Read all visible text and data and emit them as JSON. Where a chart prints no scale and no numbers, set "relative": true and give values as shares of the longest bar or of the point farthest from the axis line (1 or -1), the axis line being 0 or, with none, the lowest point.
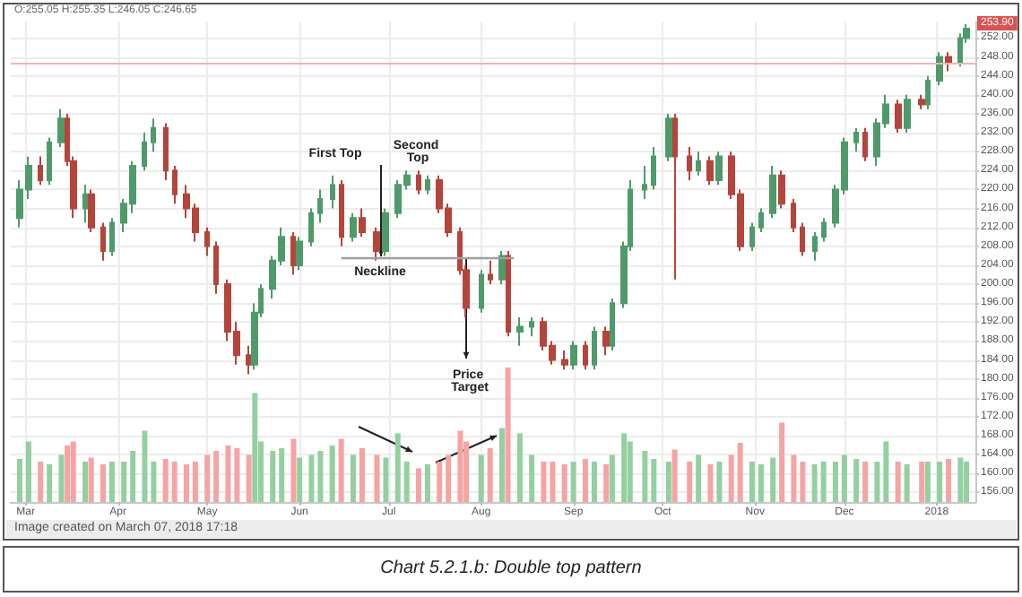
{
  "chart_data": [
    {
      "type": "candlestick",
      "tick_labels": "y",
      "grid": true,
      "xlim": [
        "2017-02-24",
        "2018-01-14"
      ],
      "xticks": [
        {
          "value": "2017-03-01",
          "label": "Mar"
        },
        {
          "value": "2017-04-01",
          "label": "Apr"
        },
        {
          "value": "2017-05-01",
          "label": "May"
        },
        {
          "value": "2017-06-01",
          "label": "Jun"
        },
        {
          "value": "2017-07-01",
          "label": "Jul"
        },
        {
          "value": "2017-08-01",
          "label": "Aug"
        },
        {
          "value": "2017-09-01",
          "label": "Sep"
        },
        {
          "value": "2017-10-01",
          "label": "Oct"
        },
        {
          "value": "2017-11-01",
          "label": "Nov"
        },
        {
          "value": "2017-12-01",
          "label": "Dec"
        },
        {
          "value": "2018-01-01",
          "label": "2018"
        }
      ],
      "ylim": [
        154,
        255.5
      ],
      "yticks": [
        {
          "value": 156,
          "label": "156.00"
        },
        {
          "value": 160,
          "label": "160.00"
        },
        {
          "value": 164,
          "label": "164.00"
        },
        {
          "value": 168,
          "label": "168.00"
        },
        {
          "value": 172,
          "label": "172.00"
        },
        {
          "value": 176,
          "label": "176.00"
        },
        {
          "value": 180,
          "label": "180.00"
        },
        {
          "value": 184,
          "label": "184.00"
        },
        {
          "value": 188,
          "label": "188.00"
        },
        {
          "value": 192,
          "label": "192.00"
        },
        {
          "value": 196,
          "label": "196.00"
        },
        {
          "value": 200,
          "label": "200.00"
        },
        {
          "value": 204,
          "label": "204.00"
        },
        {
          "value": 208,
          "label": "208.00"
        },
        {
          "value": 212,
          "label": "212.00"
        },
        {
          "value": 216,
          "label": "216.00"
        },
        {
          "value": 220,
          "label": "220.00"
        },
        {
          "value": 224,
          "label": "224.00"
        },
        {
          "value": 228,
          "label": "228.00"
        },
        {
          "value": 232,
          "label": "232.00"
        },
        {
          "value": 236,
          "label": "236.00"
        },
        {
          "value": 240,
          "label": "240.00"
        },
        {
          "value": 244,
          "label": "244.00"
        },
        {
          "value": 248,
          "label": "248.00"
        },
        {
          "value": 252,
          "label": "252.00"
        }
      ],
      "ref_lines": [
        {
          "axis": "y",
          "value": 246.65,
          "color": "#f4b4b4"
        }
      ],
      "annotations": [
        "O:255.05 H:255.35 L:246.05 C:246.65",
        "253.90",
        "First Top",
        "Second Top",
        "Neckline",
        "Price Target"
      ],
      "series": [
        {
          "x": [
            "2017-02-27",
            "2017-03-02",
            "2017-03-06",
            "2017-03-09",
            "2017-03-13",
            "2017-03-15",
            "2017-03-17",
            "2017-03-21",
            "2017-03-23",
            "2017-03-27",
            "2017-03-30",
            "2017-04-03",
            "2017-04-06",
            "2017-04-10",
            "2017-04-13",
            "2017-04-17",
            "2017-04-20",
            "2017-04-24",
            "2017-04-27",
            "2017-05-01",
            "2017-05-04",
            "2017-05-08",
            "2017-05-11",
            "2017-05-15",
            "2017-05-17",
            "2017-05-19",
            "2017-05-23",
            "2017-05-26",
            "2017-05-30",
            "2017-06-01",
            "2017-06-05",
            "2017-06-08",
            "2017-06-12",
            "2017-06-15",
            "2017-06-19",
            "2017-06-22",
            "2017-06-27",
            "2017-06-30",
            "2017-07-04",
            "2017-07-07",
            "2017-07-11",
            "2017-07-14",
            "2017-07-18",
            "2017-07-21",
            "2017-07-25",
            "2017-07-27",
            "2017-08-01",
            "2017-08-04",
            "2017-08-08",
            "2017-08-10",
            "2017-08-14",
            "2017-08-18",
            "2017-08-22",
            "2017-08-25",
            "2017-08-29",
            "2017-09-01",
            "2017-09-05",
            "2017-09-08",
            "2017-09-12",
            "2017-09-14",
            "2017-09-18",
            "2017-09-20",
            "2017-09-25",
            "2017-09-28",
            "2017-10-03",
            "2017-10-05",
            "2017-10-10",
            "2017-10-13",
            "2017-10-17",
            "2017-10-20",
            "2017-10-24",
            "2017-10-27",
            "2017-10-31",
            "2017-11-03",
            "2017-11-07",
            "2017-11-10",
            "2017-11-14",
            "2017-11-17",
            "2017-11-21",
            "2017-11-24",
            "2017-11-28",
            "2017-12-01",
            "2017-12-05",
            "2017-12-08",
            "2017-12-12",
            "2017-12-15",
            "2017-12-19",
            "2017-12-22",
            "2017-12-27",
            "2017-12-29",
            "2018-01-02",
            "2018-01-05",
            "2018-01-09",
            "2018-01-11"
          ],
          "ohlc": [
            [
              214,
              222,
              212,
              220
            ],
            [
              220,
              227,
              218,
              225
            ],
            [
              225,
              227,
              221,
              222
            ],
            [
              222,
              231,
              221,
              230
            ],
            [
              230,
              237,
              229,
              235
            ],
            [
              235,
              236,
              225,
              226
            ],
            [
              226,
              227,
              214,
              216
            ],
            [
              216,
              221,
              213,
              219
            ],
            [
              219,
              220,
              211,
              212
            ],
            [
              212,
              213,
              205,
              207
            ],
            [
              207,
              214,
              206,
              213
            ],
            [
              213,
              218,
              211,
              217
            ],
            [
              217,
              226,
              215,
              225
            ],
            [
              225,
              232,
              224,
              230
            ],
            [
              230,
              235,
              228,
              233
            ],
            [
              233,
              234,
              222,
              224
            ],
            [
              224,
              225,
              217,
              219
            ],
            [
              219,
              221,
              214,
              216
            ],
            [
              216,
              217,
              209,
              211
            ],
            [
              211,
              212,
              206,
              208
            ],
            [
              208,
              209,
              198,
              200
            ],
            [
              200,
              201,
              188,
              190
            ],
            [
              190,
              192,
              183,
              185
            ],
            [
              185,
              187,
              181,
              183
            ],
            [
              183,
              196,
              182,
              194
            ],
            [
              194,
              200,
              193,
              199
            ],
            [
              199,
              206,
              197,
              205
            ],
            [
              205,
              212,
              204,
              210
            ],
            [
              210,
              211,
              202,
              204
            ],
            [
              204,
              210,
              203,
              209
            ],
            [
              209,
              216,
              208,
              215
            ],
            [
              215,
              220,
              213,
              218
            ],
            [
              218,
              223,
              216,
              221
            ],
            [
              221,
              222,
              208,
              210
            ],
            [
              210,
              215,
              209,
              214
            ],
            [
              214,
              216,
              210,
              211
            ],
            [
              211,
              212,
              205,
              207
            ],
            [
              207,
              216,
              206,
              215
            ],
            [
              215,
              222,
              214,
              221
            ],
            [
              221,
              224,
              220,
              223
            ],
            [
              223,
              224,
              219,
              220
            ],
            [
              220,
              223,
              219,
              222
            ],
            [
              222,
              223,
              215,
              216
            ],
            [
              216,
              217,
              210,
              211
            ],
            [
              211,
              212,
              202,
              203
            ],
            [
              203,
              204,
              193,
              195
            ],
            [
              195,
              203,
              194,
              202
            ],
            [
              202,
              205,
              200,
              201
            ],
            [
              201,
              207,
              200,
              206
            ],
            [
              206,
              207,
              189,
              190
            ],
            [
              190,
              193,
              187,
              191
            ],
            [
              191,
              193,
              189,
              192
            ],
            [
              192,
              193,
              186,
              187
            ],
            [
              187,
              188,
              183,
              184
            ],
            [
              184,
              186,
              182,
              183
            ],
            [
              183,
              188,
              182,
              187
            ],
            [
              187,
              188,
              182,
              183
            ],
            [
              183,
              191,
              182,
              190
            ],
            [
              190,
              191,
              185,
              187
            ],
            [
              187,
              197,
              186,
              196
            ],
            [
              196,
              209,
              195,
              208
            ],
            [
              208,
              222,
              207,
              220
            ],
            [
              220,
              225,
              218,
              221
            ],
            [
              221,
              229,
              220,
              227
            ],
            [
              227,
              236,
              226,
              235
            ],
            [
              235,
              236,
              201,
              227
            ],
            [
              227,
              229,
              222,
              224
            ],
            [
              224,
              228,
              223,
              226
            ],
            [
              226,
              227,
              221,
              222
            ],
            [
              222,
              228,
              221,
              227
            ],
            [
              227,
              228,
              218,
              219
            ],
            [
              219,
              220,
              207,
              208
            ],
            [
              208,
              213,
              207,
              212
            ],
            [
              212,
              216,
              211,
              215
            ],
            [
              215,
              225,
              214,
              223
            ],
            [
              223,
              224,
              216,
              217
            ],
            [
              217,
              218,
              211,
              212
            ],
            [
              212,
              213,
              206,
              207
            ],
            [
              207,
              211,
              205,
              210
            ],
            [
              210,
              214,
              209,
              213
            ],
            [
              213,
              221,
              212,
              220
            ],
            [
              220,
              231,
              219,
              230
            ],
            [
              230,
              233,
              228,
              232
            ],
            [
              232,
              233,
              226,
              227
            ],
            [
              227,
              235,
              225,
              234
            ],
            [
              234,
              240,
              233,
              238
            ],
            [
              238,
              239,
              232,
              233
            ],
            [
              233,
              240,
              232,
              239
            ],
            [
              239,
              240,
              237,
              238
            ],
            [
              238,
              244,
              237,
              243
            ],
            [
              243,
              249,
              242,
              248
            ],
            [
              248,
              249,
              245,
              247
            ],
            [
              247,
              253,
              246,
              252
            ],
            [
              252,
              255,
              251,
              254
            ]
          ],
          "colors": [
            "#4f9a6a",
            "#4f9a6a",
            "#b5443b",
            "#4f9a6a",
            "#4f9a6a",
            "#b5443b",
            "#b5443b",
            "#4f9a6a",
            "#b5443b",
            "#b5443b",
            "#4f9a6a",
            "#4f9a6a",
            "#4f9a6a",
            "#4f9a6a",
            "#4f9a6a",
            "#b5443b",
            "#b5443b",
            "#b5443b",
            "#b5443b",
            "#b5443b",
            "#b5443b",
            "#b5443b",
            "#b5443b",
            "#b5443b",
            "#4f9a6a",
            "#4f9a6a",
            "#4f9a6a",
            "#4f9a6a",
            "#b5443b",
            "#4f9a6a",
            "#4f9a6a",
            "#4f9a6a",
            "#4f9a6a",
            "#b5443b",
            "#4f9a6a",
            "#b5443b",
            "#b5443b",
            "#4f9a6a",
            "#4f9a6a",
            "#4f9a6a",
            "#b5443b",
            "#4f9a6a",
            "#b5443b",
            "#b5443b",
            "#b5443b",
            "#b5443b",
            "#4f9a6a",
            "#b5443b",
            "#4f9a6a",
            "#b5443b",
            "#4f9a6a",
            "#4f9a6a",
            "#b5443b",
            "#b5443b",
            "#b5443b",
            "#4f9a6a",
            "#b5443b",
            "#4f9a6a",
            "#b5443b",
            "#4f9a6a",
            "#4f9a6a",
            "#4f9a6a",
            "#4f9a6a",
            "#4f9a6a",
            "#4f9a6a",
            "#b5443b",
            "#b5443b",
            "#4f9a6a",
            "#b5443b",
            "#4f9a6a",
            "#b5443b",
            "#b5443b",
            "#4f9a6a",
            "#4f9a6a",
            "#4f9a6a",
            "#b5443b",
            "#b5443b",
            "#b5443b",
            "#4f9a6a",
            "#4f9a6a",
            "#4f9a6a",
            "#4f9a6a",
            "#4f9a6a",
            "#b5443b",
            "#4f9a6a",
            "#4f9a6a",
            "#b5443b",
            "#4f9a6a",
            "#b5443b",
            "#4f9a6a",
            "#4f9a6a",
            "#b5443b",
            "#4f9a6a",
            "#4f9a6a"
          ]
        },
        {
          "type": "line",
          "x": [
            "2017-06-15",
            "2017-08-12"
          ],
          "values": [
            205.5,
            205.5
          ],
          "color": "#a0a0a0"
        }
      ]
    },
    {
      "type": "bar",
      "relative": true,
      "tick_labels": "x",
      "xlim": [
        "2017-02-24",
        "2018-01-14"
      ],
      "xticks": [
        {
          "value": "2017-03-01",
          "label": "Mar"
        },
        {
          "value": "2017-04-01",
          "label": "Apr"
        },
        {
          "value": "2017-05-01",
          "label": "May"
        },
        {
          "value": "2017-06-01",
          "label": "Jun"
        },
        {
          "value": "2017-07-01",
          "label": "Jul"
        },
        {
          "value": "2017-08-01",
          "label": "Aug"
        },
        {
          "value": "2017-09-01",
          "label": "Sep"
        },
        {
          "value": "2017-10-01",
          "label": "Oct"
        },
        {
          "value": "2017-11-01",
          "label": "Nov"
        },
        {
          "value": "2017-12-01",
          "label": "Dec"
        },
        {
          "value": "2018-01-01",
          "label": "2018"
        }
      ],
      "annotations": [
        "Image created on March 07, 2018 17:18",
        "Chart 5.2.1.b: Double top pattern"
      ],
      "x": [
        "2017-02-27",
        "2017-03-02",
        "2017-03-06",
        "2017-03-09",
        "2017-03-13",
        "2017-03-15",
        "2017-03-17",
        "2017-03-21",
        "2017-03-23",
        "2017-03-27",
        "2017-03-30",
        "2017-04-03",
        "2017-04-06",
        "2017-04-10",
        "2017-04-13",
        "2017-04-17",
        "2017-04-20",
        "2017-04-24",
        "2017-04-27",
        "2017-05-01",
        "2017-05-04",
        "2017-05-08",
        "2017-05-11",
        "2017-05-15",
        "2017-05-17",
        "2017-05-19",
        "2017-05-23",
        "2017-05-26",
        "2017-05-30",
        "2017-06-01",
        "2017-06-05",
        "2017-06-08",
        "2017-06-12",
        "2017-06-15",
        "2017-06-19",
        "2017-06-22",
        "2017-06-27",
        "2017-06-30",
        "2017-07-04",
        "2017-07-07",
        "2017-07-11",
        "2017-07-14",
        "2017-07-18",
        "2017-07-21",
        "2017-07-25",
        "2017-07-27",
        "2017-08-01",
        "2017-08-04",
        "2017-08-08",
        "2017-08-10",
        "2017-08-14",
        "2017-08-18",
        "2017-08-22",
        "2017-08-25",
        "2017-08-29",
        "2017-09-01",
        "2017-09-05",
        "2017-09-08",
        "2017-09-12",
        "2017-09-14",
        "2017-09-18",
        "2017-09-20",
        "2017-09-25",
        "2017-09-28",
        "2017-10-03",
        "2017-10-05",
        "2017-10-10",
        "2017-10-13",
        "2017-10-17",
        "2017-10-20",
        "2017-10-24",
        "2017-10-27",
        "2017-10-31",
        "2017-11-03",
        "2017-11-07",
        "2017-11-10",
        "2017-11-14",
        "2017-11-17",
        "2017-11-21",
        "2017-11-24",
        "2017-11-28",
        "2017-12-01",
        "2017-12-05",
        "2017-12-08",
        "2017-12-12",
        "2017-12-15",
        "2017-12-19",
        "2017-12-22",
        "2017-12-27",
        "2017-12-29",
        "2018-01-02",
        "2018-01-05",
        "2018-01-09",
        "2018-01-11"
      ],
      "values": [
        0.32,
        0.45,
        0.3,
        0.28,
        0.35,
        0.42,
        0.45,
        0.3,
        0.33,
        0.28,
        0.3,
        0.3,
        0.38,
        0.53,
        0.3,
        0.32,
        0.3,
        0.28,
        0.3,
        0.35,
        0.38,
        0.42,
        0.4,
        0.35,
        0.81,
        0.45,
        0.38,
        0.4,
        0.47,
        0.33,
        0.35,
        0.38,
        0.42,
        0.47,
        0.35,
        0.4,
        0.35,
        0.33,
        0.51,
        0.3,
        0.25,
        0.28,
        0.3,
        0.35,
        0.53,
        0.45,
        0.35,
        0.4,
        0.55,
        1.0,
        0.51,
        0.35,
        0.3,
        0.3,
        0.28,
        0.3,
        0.32,
        0.3,
        0.28,
        0.35,
        0.51,
        0.45,
        0.38,
        0.32,
        0.3,
        0.39,
        0.3,
        0.35,
        0.28,
        0.3,
        0.35,
        0.44,
        0.3,
        0.28,
        0.33,
        0.59,
        0.35,
        0.3,
        0.28,
        0.3,
        0.3,
        0.35,
        0.32,
        0.3,
        0.3,
        0.45,
        0.3,
        0.28,
        0.3,
        0.3,
        0.3,
        0.32,
        0.33,
        0.3
      ],
      "colors": [
        "#94cf9f",
        "#94cf9f",
        "#f5a3a3",
        "#94cf9f",
        "#94cf9f",
        "#f5a3a3",
        "#f5a3a3",
        "#94cf9f",
        "#f5a3a3",
        "#f5a3a3",
        "#94cf9f",
        "#94cf9f",
        "#94cf9f",
        "#94cf9f",
        "#94cf9f",
        "#f5a3a3",
        "#f5a3a3",
        "#f5a3a3",
        "#f5a3a3",
        "#f5a3a3",
        "#f5a3a3",
        "#f5a3a3",
        "#f5a3a3",
        "#f5a3a3",
        "#94cf9f",
        "#94cf9f",
        "#94cf9f",
        "#94cf9f",
        "#f5a3a3",
        "#94cf9f",
        "#94cf9f",
        "#94cf9f",
        "#94cf9f",
        "#f5a3a3",
        "#94cf9f",
        "#f5a3a3",
        "#f5a3a3",
        "#94cf9f",
        "#94cf9f",
        "#94cf9f",
        "#f5a3a3",
        "#94cf9f",
        "#f5a3a3",
        "#f5a3a3",
        "#f5a3a3",
        "#f5a3a3",
        "#94cf9f",
        "#f5a3a3",
        "#94cf9f",
        "#f5a3a3",
        "#94cf9f",
        "#94cf9f",
        "#f5a3a3",
        "#f5a3a3",
        "#f5a3a3",
        "#94cf9f",
        "#f5a3a3",
        "#94cf9f",
        "#f5a3a3",
        "#94cf9f",
        "#94cf9f",
        "#94cf9f",
        "#94cf9f",
        "#94cf9f",
        "#94cf9f",
        "#f5a3a3",
        "#f5a3a3",
        "#94cf9f",
        "#f5a3a3",
        "#94cf9f",
        "#f5a3a3",
        "#f5a3a3",
        "#94cf9f",
        "#94cf9f",
        "#94cf9f",
        "#f5a3a3",
        "#f5a3a3",
        "#f5a3a3",
        "#94cf9f",
        "#94cf9f",
        "#94cf9f",
        "#94cf9f",
        "#94cf9f",
        "#f5a3a3",
        "#94cf9f",
        "#94cf9f",
        "#f5a3a3",
        "#94cf9f",
        "#f5a3a3",
        "#94cf9f",
        "#94cf9f",
        "#f5a3a3",
        "#94cf9f",
        "#94cf9f"
      ]
    }
  ]
}
